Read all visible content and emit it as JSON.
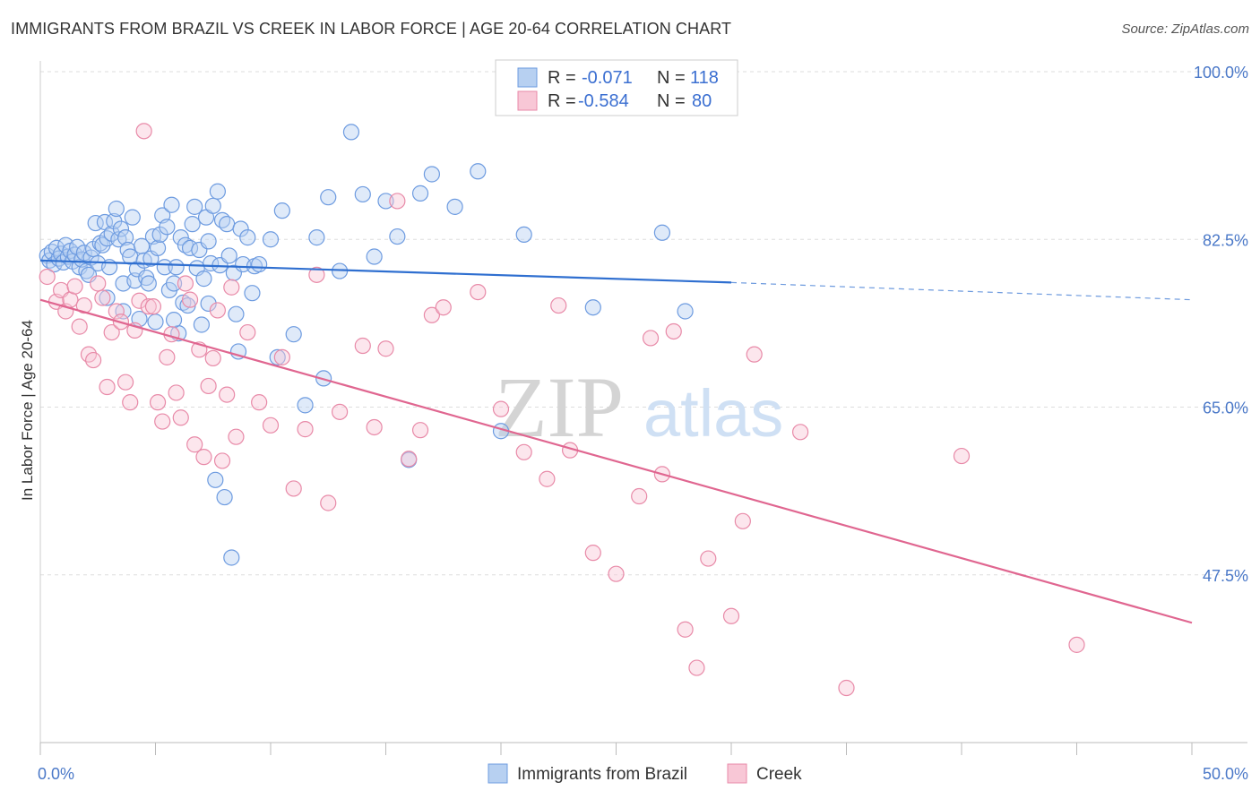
{
  "header": {
    "title": "IMMIGRANTS FROM BRAZIL VS CREEK IN LABOR FORCE | AGE 20-64 CORRELATION CHART",
    "source": "Source: ZipAtlas.com"
  },
  "watermark": {
    "zip": "ZIP",
    "atlas": "atlas"
  },
  "legend": {
    "rows": [
      {
        "r_label": "R =",
        "r_value": "-0.071",
        "n_label": "N =",
        "n_value": "118"
      },
      {
        "r_label": "R =",
        "r_value": "-0.584",
        "n_label": "N =",
        "n_value": "80"
      }
    ]
  },
  "bottom_legend": {
    "items": [
      {
        "label": "Immigrants from Brazil"
      },
      {
        "label": "Creek"
      }
    ]
  },
  "chart_data": {
    "type": "scatter",
    "title": "IMMIGRANTS FROM BRAZIL VS CREEK IN LABOR FORCE | AGE 20-64 CORRELATION CHART",
    "xlabel": "",
    "ylabel": "In Labor Force | Age 20-64",
    "xlim": [
      0,
      50
    ],
    "ylim": [
      30,
      100
    ],
    "x_tick_labels": [
      {
        "value": 0,
        "label": "0.0%"
      },
      {
        "value": 50,
        "label": "50.0%"
      }
    ],
    "y_tick_labels": [
      {
        "value": 100,
        "label": "100.0%"
      },
      {
        "value": 82.5,
        "label": "82.5%"
      },
      {
        "value": 65,
        "label": "65.0%"
      },
      {
        "value": 47.5,
        "label": "47.5%"
      }
    ],
    "grid": true,
    "legend_position": "top-center",
    "colors": {
      "brazil_fill": "#b7d0f1",
      "brazil_stroke": "#6d9be0",
      "brazil_line": "#2f6fd0",
      "creek_fill": "#f8c7d6",
      "creek_stroke": "#e88aa8",
      "creek_line": "#e06690",
      "tick_text": "#4a78c8"
    },
    "series": [
      {
        "name": "Immigrants from Brazil",
        "trend": {
          "x_start": 0,
          "y_start": 80.3,
          "x_solid_end": 30,
          "y_solid_end": 78.0,
          "x_end": 50,
          "y_end": 76.2
        },
        "points": [
          [
            0.3,
            80.8
          ],
          [
            0.4,
            80.3
          ],
          [
            0.5,
            81.2
          ],
          [
            0.6,
            79.9
          ],
          [
            0.7,
            81.6
          ],
          [
            0.8,
            80.5
          ],
          [
            0.9,
            81.0
          ],
          [
            1.0,
            80.1
          ],
          [
            1.1,
            81.9
          ],
          [
            1.2,
            80.7
          ],
          [
            1.3,
            81.3
          ],
          [
            1.4,
            80.2
          ],
          [
            1.5,
            80.9
          ],
          [
            1.6,
            81.7
          ],
          [
            1.7,
            79.6
          ],
          [
            1.8,
            80.4
          ],
          [
            1.9,
            81.1
          ],
          [
            2.0,
            79.2
          ],
          [
            2.1,
            78.8
          ],
          [
            2.2,
            80.6
          ],
          [
            2.3,
            81.5
          ],
          [
            2.4,
            84.2
          ],
          [
            2.5,
            80.0
          ],
          [
            2.6,
            82.1
          ],
          [
            2.7,
            81.9
          ],
          [
            2.8,
            84.3
          ],
          [
            2.9,
            82.6
          ],
          [
            3.0,
            79.6
          ],
          [
            3.1,
            83.1
          ],
          [
            3.2,
            84.4
          ],
          [
            3.3,
            85.7
          ],
          [
            3.4,
            82.5
          ],
          [
            3.5,
            83.6
          ],
          [
            3.6,
            77.9
          ],
          [
            3.7,
            82.7
          ],
          [
            3.8,
            81.4
          ],
          [
            3.9,
            80.7
          ],
          [
            4.0,
            84.8
          ],
          [
            4.1,
            78.2
          ],
          [
            4.2,
            79.4
          ],
          [
            4.3,
            74.2
          ],
          [
            4.4,
            81.8
          ],
          [
            4.5,
            80.3
          ],
          [
            4.6,
            78.5
          ],
          [
            4.7,
            77.9
          ],
          [
            4.8,
            80.5
          ],
          [
            4.9,
            82.8
          ],
          [
            5.0,
            73.9
          ],
          [
            5.1,
            81.6
          ],
          [
            5.2,
            83.0
          ],
          [
            5.3,
            85.0
          ],
          [
            5.4,
            79.6
          ],
          [
            5.5,
            83.8
          ],
          [
            5.6,
            77.2
          ],
          [
            5.7,
            86.1
          ],
          [
            5.8,
            77.9
          ],
          [
            5.9,
            79.6
          ],
          [
            6.0,
            72.7
          ],
          [
            6.1,
            82.7
          ],
          [
            6.2,
            75.9
          ],
          [
            6.3,
            81.9
          ],
          [
            6.4,
            75.6
          ],
          [
            6.5,
            81.6
          ],
          [
            6.6,
            84.1
          ],
          [
            6.7,
            85.9
          ],
          [
            6.8,
            79.5
          ],
          [
            6.9,
            81.4
          ],
          [
            7.0,
            73.6
          ],
          [
            7.1,
            78.4
          ],
          [
            7.2,
            84.8
          ],
          [
            7.3,
            82.3
          ],
          [
            7.4,
            80.0
          ],
          [
            7.5,
            86.0
          ],
          [
            7.6,
            57.4
          ],
          [
            7.7,
            87.5
          ],
          [
            7.8,
            79.8
          ],
          [
            7.9,
            84.5
          ],
          [
            8.0,
            55.6
          ],
          [
            8.1,
            84.1
          ],
          [
            8.2,
            80.8
          ],
          [
            8.3,
            49.3
          ],
          [
            8.4,
            79.0
          ],
          [
            8.5,
            74.7
          ],
          [
            8.6,
            70.8
          ],
          [
            8.7,
            83.6
          ],
          [
            8.8,
            79.9
          ],
          [
            9.0,
            82.7
          ],
          [
            9.3,
            79.7
          ],
          [
            9.5,
            79.9
          ],
          [
            10.0,
            82.5
          ],
          [
            10.5,
            85.5
          ],
          [
            11.0,
            72.6
          ],
          [
            12.0,
            82.7
          ],
          [
            12.5,
            86.9
          ],
          [
            13.0,
            79.2
          ],
          [
            13.5,
            93.7
          ],
          [
            14.0,
            87.2
          ],
          [
            14.5,
            80.7
          ],
          [
            15.0,
            86.5
          ],
          [
            15.5,
            82.8
          ],
          [
            16.0,
            59.5
          ],
          [
            16.5,
            87.3
          ],
          [
            17.0,
            89.3
          ],
          [
            18.0,
            85.9
          ],
          [
            19.0,
            89.6
          ],
          [
            20.0,
            62.5
          ],
          [
            21.0,
            83.0
          ],
          [
            24.0,
            75.4
          ],
          [
            27.0,
            83.2
          ],
          [
            28.0,
            75.0
          ],
          [
            12.3,
            68.0
          ],
          [
            10.3,
            70.2
          ],
          [
            9.2,
            76.9
          ],
          [
            11.5,
            65.2
          ],
          [
            7.3,
            75.8
          ],
          [
            5.8,
            74.1
          ],
          [
            3.6,
            75.0
          ],
          [
            2.9,
            76.4
          ]
        ]
      },
      {
        "name": "Creek",
        "trend": {
          "x_start": 0,
          "y_start": 76.2,
          "x_end": 50,
          "y_end": 42.5
        },
        "points": [
          [
            0.3,
            78.6
          ],
          [
            0.7,
            76.0
          ],
          [
            0.9,
            77.2
          ],
          [
            1.1,
            75.0
          ],
          [
            1.3,
            76.2
          ],
          [
            1.5,
            77.6
          ],
          [
            1.7,
            73.4
          ],
          [
            1.9,
            75.6
          ],
          [
            2.1,
            70.5
          ],
          [
            2.3,
            69.9
          ],
          [
            2.5,
            77.9
          ],
          [
            2.7,
            76.4
          ],
          [
            2.9,
            67.1
          ],
          [
            3.1,
            72.8
          ],
          [
            3.3,
            75.0
          ],
          [
            3.5,
            73.9
          ],
          [
            3.7,
            67.6
          ],
          [
            3.9,
            65.5
          ],
          [
            4.1,
            73.0
          ],
          [
            4.3,
            76.1
          ],
          [
            4.5,
            93.8
          ],
          [
            4.7,
            75.5
          ],
          [
            4.9,
            75.5
          ],
          [
            5.1,
            65.5
          ],
          [
            5.3,
            63.5
          ],
          [
            5.5,
            70.2
          ],
          [
            5.7,
            72.6
          ],
          [
            5.9,
            66.5
          ],
          [
            6.1,
            63.9
          ],
          [
            6.3,
            77.9
          ],
          [
            6.5,
            76.2
          ],
          [
            6.7,
            61.1
          ],
          [
            6.9,
            71.0
          ],
          [
            7.1,
            59.8
          ],
          [
            7.3,
            67.2
          ],
          [
            7.5,
            70.1
          ],
          [
            7.7,
            75.1
          ],
          [
            7.9,
            59.4
          ],
          [
            8.1,
            66.3
          ],
          [
            8.3,
            77.5
          ],
          [
            8.5,
            61.9
          ],
          [
            9.0,
            72.8
          ],
          [
            9.5,
            65.5
          ],
          [
            10.0,
            63.1
          ],
          [
            10.5,
            70.2
          ],
          [
            11.0,
            56.5
          ],
          [
            11.5,
            62.7
          ],
          [
            12.0,
            78.8
          ],
          [
            12.5,
            55.0
          ],
          [
            13.0,
            64.5
          ],
          [
            14.0,
            71.4
          ],
          [
            14.5,
            62.9
          ],
          [
            15.0,
            71.1
          ],
          [
            15.5,
            86.5
          ],
          [
            16.0,
            59.6
          ],
          [
            16.5,
            62.6
          ],
          [
            17.0,
            74.6
          ],
          [
            17.5,
            75.4
          ],
          [
            19.0,
            77.0
          ],
          [
            20.0,
            64.8
          ],
          [
            21.0,
            60.3
          ],
          [
            22.0,
            57.5
          ],
          [
            22.5,
            75.6
          ],
          [
            23.0,
            60.5
          ],
          [
            24.0,
            49.8
          ],
          [
            25.0,
            47.6
          ],
          [
            26.0,
            55.7
          ],
          [
            26.5,
            72.2
          ],
          [
            27.0,
            58.0
          ],
          [
            27.5,
            72.9
          ],
          [
            28.0,
            41.8
          ],
          [
            28.5,
            37.8
          ],
          [
            29.0,
            49.2
          ],
          [
            30.0,
            43.2
          ],
          [
            30.5,
            53.1
          ],
          [
            31.0,
            70.5
          ],
          [
            33.0,
            62.4
          ],
          [
            35.0,
            35.7
          ],
          [
            40.0,
            59.9
          ],
          [
            45.0,
            40.2
          ]
        ]
      }
    ]
  }
}
